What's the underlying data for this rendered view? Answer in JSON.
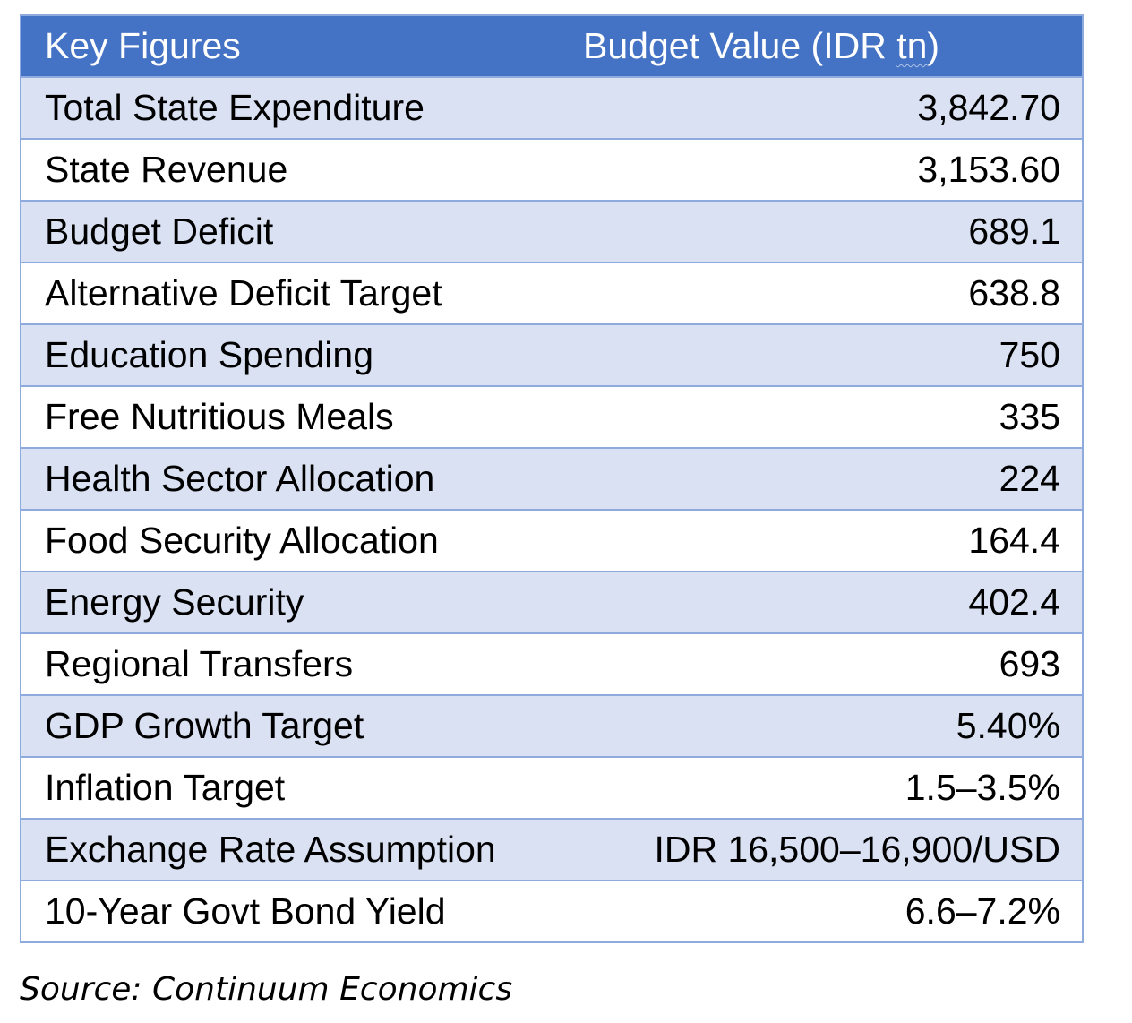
{
  "table": {
    "headers": {
      "label": "Key Figures",
      "value_prefix": "Budget Value (IDR ",
      "value_unit": "tn",
      "value_suffix": ")"
    },
    "rows": [
      {
        "label": "Total State Expenditure",
        "value": "3,842.70"
      },
      {
        "label": "State Revenue",
        "value": "3,153.60"
      },
      {
        "label": "Budget Deficit",
        "value": "689.1"
      },
      {
        "label": "Alternative Deficit Target",
        "value": "638.8"
      },
      {
        "label": "Education Spending",
        "value": "750"
      },
      {
        "label": "Free Nutritious Meals",
        "value": "335"
      },
      {
        "label": "Health Sector Allocation",
        "value": "224"
      },
      {
        "label": "Food Security Allocation",
        "value": "164.4"
      },
      {
        "label": "Energy Security",
        "value": "402.4"
      },
      {
        "label": "Regional Transfers",
        "value": "693"
      },
      {
        "label": "GDP Growth Target",
        "value": "5.40%"
      },
      {
        "label": "Inflation Target",
        "value": "1.5–3.5%"
      },
      {
        "label": "Exchange Rate Assumption",
        "value": "IDR 16,500–16,900/USD"
      },
      {
        "label": "10-Year Govt Bond Yield",
        "value": "6.6–7.2%"
      }
    ]
  },
  "source": "Source: Continuum Economics",
  "colors": {
    "header_bg": "#4472c4",
    "band_bg": "#d9e1f2",
    "border": "#8faadc"
  }
}
